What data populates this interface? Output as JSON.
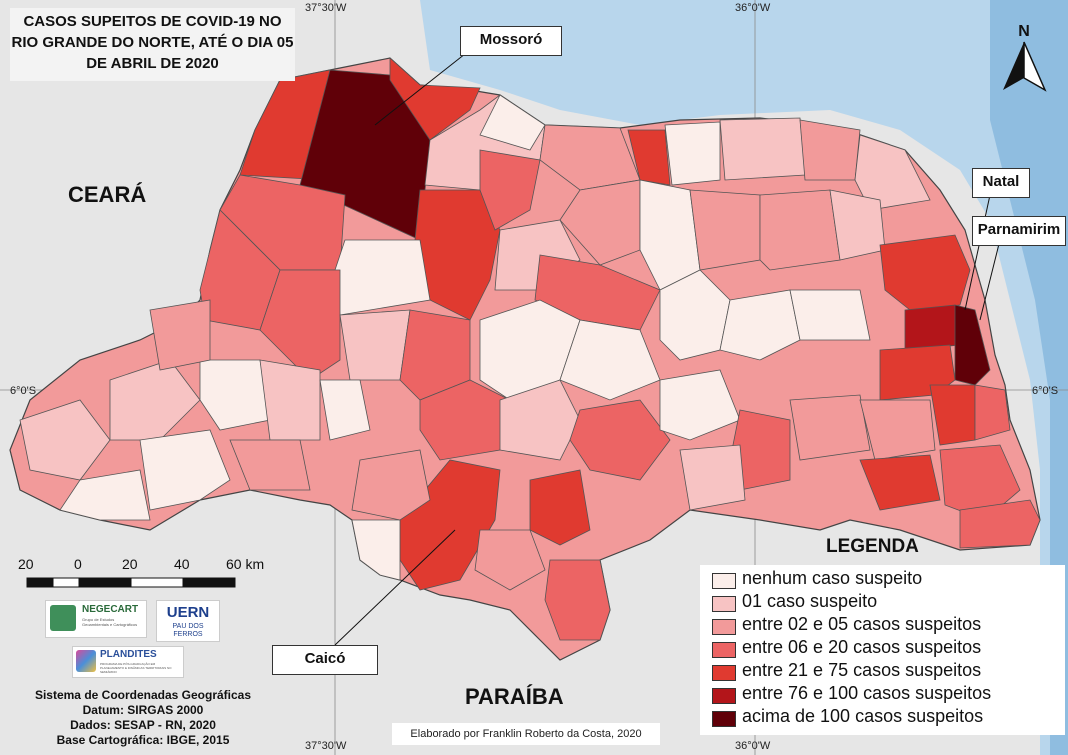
{
  "title": {
    "line1": "CASOS SUPEITOS DE COVID-19 NO",
    "line2": "RIO GRANDE DO NORTE, ATÉ O DIA 05",
    "line3": "DE ABRIL DE 2020"
  },
  "coordinates": {
    "top_left": "37°30'W",
    "top_right": "36°0'W",
    "bottom_left": "37°30'W",
    "bottom_right": "36°0'W",
    "left_lat": "6°0'S",
    "right_lat": "6°0'S"
  },
  "regions": {
    "ceara": "CEARÁ",
    "paraiba": "PARAÍBA"
  },
  "callouts": {
    "mossoro": "Mossoró",
    "natal": "Natal",
    "parnamirim": "Parnamirim",
    "caico": "Caicó"
  },
  "north_arrow": "N",
  "scale": {
    "labels": [
      "20",
      "0",
      "20",
      "40",
      "60 km"
    ]
  },
  "legend": {
    "title": "LEGENDA",
    "items": [
      {
        "label": "nenhum caso suspeito",
        "color": "#fbeeea"
      },
      {
        "label": "01 caso suspeito",
        "color": "#f7c3c3"
      },
      {
        "label": "entre 02 e 05 casos suspeitos",
        "color": "#f29a9a"
      },
      {
        "label": "entre 06 e 20 casos suspeitos",
        "color": "#ec6464"
      },
      {
        "label": "entre 21 e 75 casos suspeitos",
        "color": "#e03a30"
      },
      {
        "label": "entre 76 e 100 casos suspeitos",
        "color": "#b3151a"
      },
      {
        "label": "acima de 100 casos suspeitos",
        "color": "#600008"
      }
    ]
  },
  "logos": {
    "negecart": "NEGECART",
    "negecart_sub": "Grupo de Estudos Geoambientais e Cartográficos",
    "uern": "UERN",
    "uern_sub": "PAU DOS FERROS",
    "plandites": "PLANDITES",
    "plandites_sub": "PROGRAMA DE PÓS-GRADUAÇÃO EM PLANEJAMENTO E DINÂMICAS TERRITORIAIS NO SEMIÁRIDO"
  },
  "info": {
    "line1": "Sistema de Coordenadas Geográficas",
    "line2": "Datum: SIRGAS 2000",
    "line3": "Dados: SESAP - RN, 2020",
    "line4": "Base Cartográfica: IBGE, 2015"
  },
  "credit": "Elaborado por Franklin Roberto da Costa, 2020"
}
